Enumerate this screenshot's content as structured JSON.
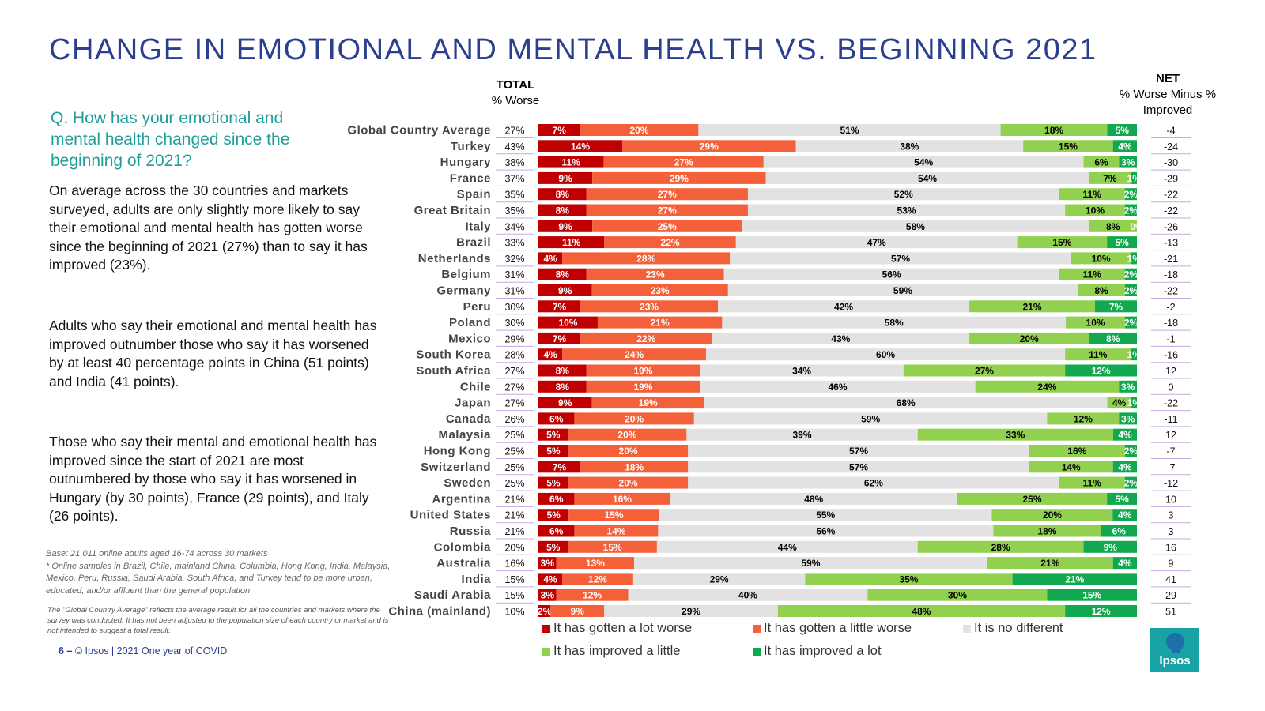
{
  "page": {
    "title": "CHANGE IN EMOTIONAL AND MENTAL HEALTH VS. BEGINNING 2021",
    "question": "Q. How has your emotional and mental health changed since the beginning of 2021?",
    "paragraphs": [
      "On average across the 30 countries and markets surveyed, adults are only slightly more likely to say their emotional and mental health has gotten worse since the beginning of 2021 (27%) than to say it has improved (23%).",
      "Adults who say their emotional and mental health has improved outnumber those who say it has worsened by at least 40 percentage points in China (51 points) and India (41 points).",
      "Those who say their mental and emotional health has improved since the start of 2021 are most outnumbered by those who say it has worsened in Hungary (by 30 points), France (29 points), and Italy (26 points)."
    ],
    "base_note": "Base: 21,011 online adults aged 16-74 across 30 markets\n* Online samples in Brazil, Chile, mainland China, Columbia, Hong Kong, India, Malaysia, Mexico, Peru, Russia, Saudi Arabia, South Africa, and Turkey tend to be more urban, educated, and/or affluent than the general population",
    "gca_note": "The \"Global Country Average\" reflects the average result for all the countries and markets where the survey was conducted. It has not been adjusted to the population size of each country or market and is not intended to suggest a total result.",
    "footer_page": "6 –",
    "footer_text": "© Ipsos | 2021 One year of COVID",
    "total_header": "TOTAL",
    "total_sub": "% Worse",
    "net_header": "NET",
    "net_sub": "% Worse Minus % Improved",
    "logo_text": "Ipsos"
  },
  "chart_data": {
    "type": "bar",
    "orientation": "horizontal",
    "stacked": true,
    "title": "CHANGE IN EMOTIONAL AND MENTAL HEALTH VS. BEGINNING 2021",
    "xlim": [
      0,
      100
    ],
    "categories": [
      "Global Country Average",
      "Turkey",
      "Hungary",
      "France",
      "Spain",
      "Great Britain",
      "Italy",
      "Brazil",
      "Netherlands",
      "Belgium",
      "Germany",
      "Peru",
      "Poland",
      "Mexico",
      "South Korea",
      "South Africa",
      "Chile",
      "Japan",
      "Canada",
      "Malaysia",
      "Hong Kong",
      "Switzerland",
      "Sweden",
      "Argentina",
      "United States",
      "Russia",
      "Colombia",
      "Australia",
      "India",
      "Saudi Arabia",
      "China (mainland)"
    ],
    "series": [
      {
        "name": "It has gotten a lot worse",
        "color": "#c00000",
        "values": [
          7,
          14,
          11,
          9,
          8,
          8,
          9,
          11,
          4,
          8,
          9,
          7,
          10,
          7,
          4,
          8,
          8,
          9,
          6,
          5,
          5,
          7,
          5,
          6,
          5,
          6,
          5,
          3,
          4,
          3,
          2
        ]
      },
      {
        "name": "It has gotten a little worse",
        "color": "#f4603a",
        "values": [
          20,
          29,
          27,
          29,
          27,
          27,
          25,
          22,
          28,
          23,
          23,
          23,
          21,
          22,
          24,
          19,
          19,
          19,
          20,
          20,
          20,
          18,
          20,
          16,
          15,
          14,
          15,
          13,
          12,
          12,
          9
        ]
      },
      {
        "name": "It is no different",
        "color": "#e2e2e2",
        "values": [
          51,
          38,
          54,
          54,
          52,
          53,
          58,
          47,
          57,
          56,
          59,
          42,
          58,
          43,
          60,
          34,
          46,
          68,
          59,
          39,
          57,
          57,
          62,
          48,
          55,
          56,
          44,
          59,
          29,
          40,
          29
        ]
      },
      {
        "name": "It has improved a little",
        "color": "#92d050",
        "values": [
          18,
          15,
          6,
          7,
          11,
          10,
          8,
          15,
          10,
          11,
          8,
          21,
          10,
          20,
          11,
          27,
          24,
          4,
          12,
          33,
          16,
          14,
          11,
          25,
          20,
          18,
          28,
          21,
          35,
          30,
          48
        ]
      },
      {
        "name": "It has improved a lot",
        "color": "#12a84f",
        "values": [
          5,
          4,
          3,
          1,
          2,
          2,
          0,
          5,
          1,
          2,
          2,
          7,
          2,
          8,
          1,
          12,
          3,
          1,
          3,
          4,
          2,
          4,
          2,
          5,
          4,
          6,
          9,
          4,
          21,
          15,
          12
        ]
      }
    ],
    "total_worse": [
      "27%",
      "43%",
      "38%",
      "37%",
      "35%",
      "35%",
      "34%",
      "33%",
      "32%",
      "31%",
      "31%",
      "30%",
      "30%",
      "29%",
      "28%",
      "27%",
      "27%",
      "27%",
      "26%",
      "25%",
      "25%",
      "25%",
      "25%",
      "21%",
      "21%",
      "21%",
      "20%",
      "16%",
      "15%",
      "15%",
      "10%"
    ],
    "net": [
      "-4",
      "-24",
      "-30",
      "-29",
      "-22",
      "-22",
      "-26",
      "-13",
      "-21",
      "-18",
      "-22",
      "-2",
      "-18",
      "-1",
      "-16",
      "12",
      "0",
      "-22",
      "-11",
      "12",
      "-7",
      "-7",
      "-12",
      "10",
      "3",
      "3",
      "16",
      "9",
      "41",
      "29",
      "51"
    ],
    "legend": [
      "It has gotten a lot worse",
      "It has gotten a little worse",
      "It is no different",
      "It has improved a little",
      "It has improved a lot"
    ]
  }
}
